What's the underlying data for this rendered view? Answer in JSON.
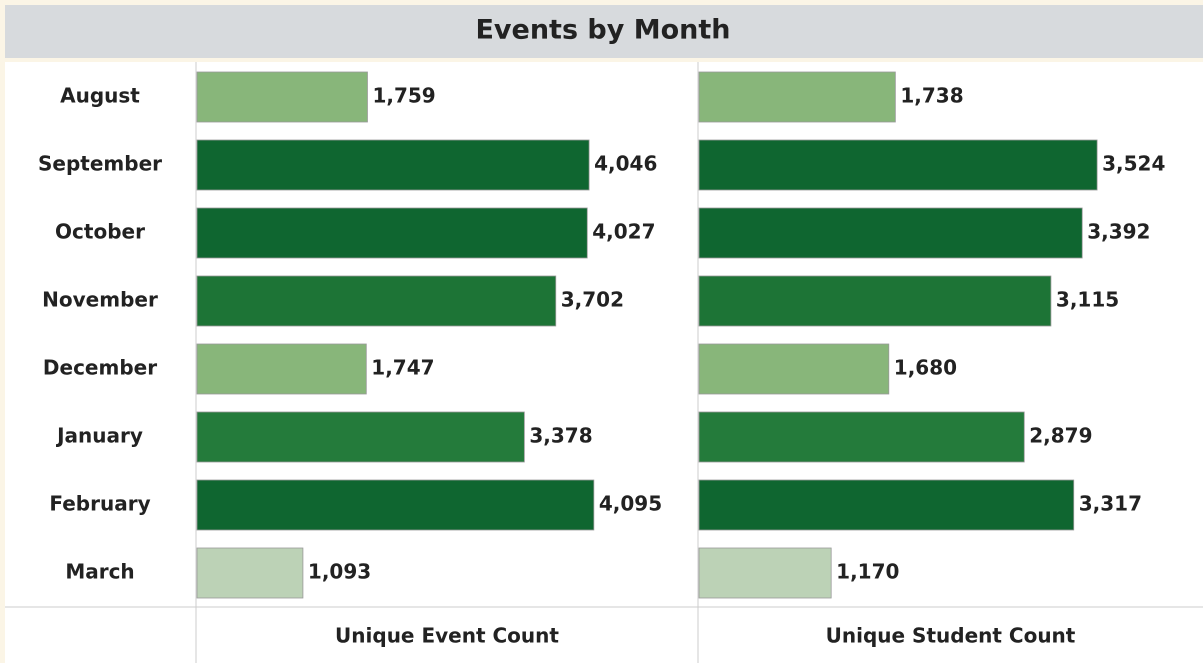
{
  "chart_data": {
    "type": "bar",
    "title": "Events by Month",
    "categories": [
      "August",
      "September",
      "October",
      "November",
      "December",
      "January",
      "February",
      "March"
    ],
    "series": [
      {
        "name": "Unique Event Count",
        "values": [
          1759,
          4046,
          4027,
          3702,
          1747,
          3378,
          4095,
          1093
        ],
        "value_labels": [
          "1,759",
          "4,046",
          "4,027",
          "3,702",
          "1,747",
          "3,378",
          "4,095",
          "1,093"
        ],
        "colors": [
          "#88b67a",
          "#0f6630",
          "#0f6630",
          "#1d7436",
          "#88b67a",
          "#247b3b",
          "#0f6630",
          "#bcd2b6"
        ],
        "xlim": [
          0,
          5180
        ]
      },
      {
        "name": "Unique Student Count",
        "values": [
          1738,
          3524,
          3392,
          3115,
          1680,
          2879,
          3317,
          1170
        ],
        "value_labels": [
          "1,738",
          "3,524",
          "3,392",
          "3,115",
          "1,680",
          "2,879",
          "3,317",
          "1,170"
        ],
        "colors": [
          "#88b67a",
          "#0f6630",
          "#0f6630",
          "#1d7436",
          "#88b67a",
          "#247b3b",
          "#0f6630",
          "#bcd2b6"
        ],
        "xlim": [
          0,
          4470
        ]
      }
    ]
  }
}
